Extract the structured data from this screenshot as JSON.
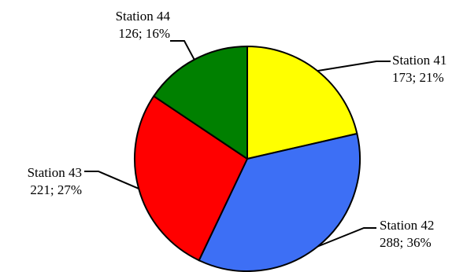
{
  "chart_data": {
    "type": "pie",
    "title": "",
    "slices": [
      {
        "name": "Station 41",
        "value": 173,
        "percent_label": "173; 21%",
        "color": "#ffff00"
      },
      {
        "name": "Station 42",
        "value": 288,
        "percent_label": "288; 36%",
        "color": "#3d6ff5"
      },
      {
        "name": "Station 43",
        "value": 221,
        "percent_label": "221; 27%",
        "color": "#ff0000"
      },
      {
        "name": "Station 44",
        "value": 126,
        "percent_label": "126; 16%",
        "color": "#008000"
      }
    ],
    "start_angle_deg": 0,
    "direction": "clockwise",
    "slice_outline_color": "#000000",
    "labels_outside_with_leader_lines": true
  }
}
